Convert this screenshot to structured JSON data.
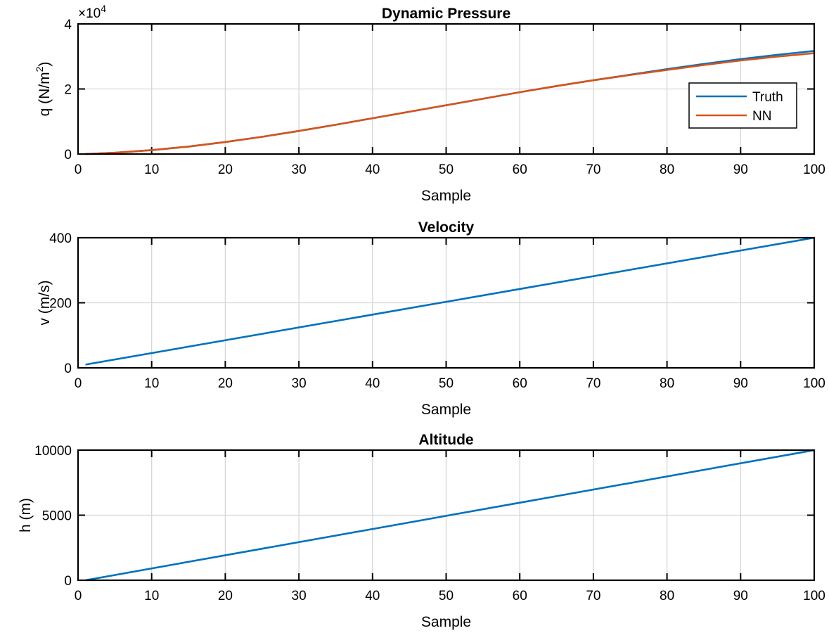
{
  "chart_data": [
    {
      "type": "line",
      "title": "Dynamic Pressure",
      "xlabel": "Sample",
      "ylabel": "q (N/m²)",
      "ylabel_base": "q (N/m",
      "ylabel_sup": "2",
      "ylabel_end": ")",
      "exponent_label": "×10",
      "exponent_sup": "4",
      "xlim": [
        0,
        100
      ],
      "ylim": [
        0,
        40000
      ],
      "xticks": [
        0,
        10,
        20,
        30,
        40,
        50,
        60,
        70,
        80,
        90,
        100
      ],
      "yticks": [
        0,
        20000,
        40000
      ],
      "ytick_labels": [
        "0",
        "2",
        "4"
      ],
      "grid": true,
      "legend": "right",
      "x": [
        1,
        5,
        10,
        15,
        20,
        25,
        30,
        35,
        40,
        45,
        50,
        55,
        60,
        65,
        70,
        75,
        80,
        85,
        90,
        95,
        100
      ],
      "series": [
        {
          "name": "Truth",
          "color": "#0072BD",
          "values": [
            0,
            400,
            1200,
            2300,
            3700,
            5300,
            7100,
            9000,
            11000,
            13000,
            15000,
            17000,
            19000,
            20900,
            22700,
            24400,
            26100,
            27700,
            29200,
            30500,
            31700
          ]
        },
        {
          "name": "NN",
          "color": "#D95319",
          "values": [
            0,
            400,
            1200,
            2300,
            3700,
            5300,
            7100,
            9000,
            11000,
            13000,
            15000,
            17000,
            19000,
            20900,
            22650,
            24300,
            25850,
            27350,
            28750,
            29950,
            31000
          ]
        }
      ]
    },
    {
      "type": "line",
      "title": "Velocity",
      "xlabel": "Sample",
      "ylabel": "v (m/s)",
      "xlim": [
        0,
        100
      ],
      "ylim": [
        0,
        400
      ],
      "xticks": [
        0,
        10,
        20,
        30,
        40,
        50,
        60,
        70,
        80,
        90,
        100
      ],
      "yticks": [
        0,
        200,
        400
      ],
      "ytick_labels": [
        "0",
        "200",
        "400"
      ],
      "grid": true,
      "x": [
        1,
        100
      ],
      "series": [
        {
          "color": "#0072BD",
          "values": [
            10,
            400
          ]
        }
      ]
    },
    {
      "type": "line",
      "title": "Altitude",
      "xlabel": "Sample",
      "ylabel": "h (m)",
      "xlim": [
        0,
        100
      ],
      "ylim": [
        0,
        10000
      ],
      "xticks": [
        0,
        10,
        20,
        30,
        40,
        50,
        60,
        70,
        80,
        90,
        100
      ],
      "yticks": [
        0,
        5000,
        10000
      ],
      "ytick_labels": [
        "0",
        "5000",
        "10000"
      ],
      "grid": true,
      "x": [
        1,
        100
      ],
      "series": [
        {
          "color": "#0072BD",
          "values": [
            0,
            10000
          ]
        }
      ]
    }
  ]
}
